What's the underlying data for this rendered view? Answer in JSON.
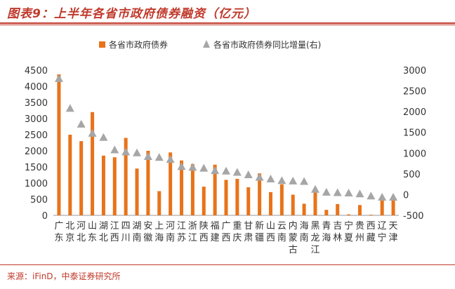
{
  "header": {
    "title": "图表9：上半年各省市政府债券融资（亿元）"
  },
  "footer": {
    "source": "来源：iFinD，中泰证券研究所"
  },
  "chart_data": {
    "type": "bar",
    "categories": [
      "广东",
      "北京",
      "河北",
      "山东",
      "湖北",
      "江西",
      "四川",
      "湖南",
      "安徽",
      "上海",
      "河南",
      "江苏",
      "浙江",
      "陕西",
      "福建",
      "广西",
      "重庆",
      "甘肃",
      "新疆",
      "山西",
      "云南",
      "内蒙古",
      "海南",
      "黑龙江",
      "青海",
      "吉林",
      "宁夏",
      "贵州",
      "西藏",
      "辽宁",
      "天津"
    ],
    "category_labels": [
      [
        "广",
        "东"
      ],
      [
        "北",
        "京"
      ],
      [
        "河",
        "北"
      ],
      [
        "山",
        "东"
      ],
      [
        "湖",
        "北"
      ],
      [
        "江",
        "西"
      ],
      [
        "四",
        "川"
      ],
      [
        "湖",
        "南"
      ],
      [
        "安",
        "徽"
      ],
      [
        "上",
        "海"
      ],
      [
        "河",
        "南"
      ],
      [
        "江",
        "苏"
      ],
      [
        "浙",
        "江"
      ],
      [
        "陕",
        "西"
      ],
      [
        "福",
        "建"
      ],
      [
        "广",
        "西"
      ],
      [
        "重",
        "庆"
      ],
      [
        "甘",
        "肃"
      ],
      [
        "新",
        "疆"
      ],
      [
        "山",
        "西"
      ],
      [
        "云",
        "南"
      ],
      [
        "内",
        "蒙",
        "古"
      ],
      [
        "海",
        "南"
      ],
      [
        "黑",
        "龙",
        "江"
      ],
      [
        "青",
        "海"
      ],
      [
        "吉",
        "林"
      ],
      [
        "宁",
        "夏"
      ],
      [
        "贵",
        "州"
      ],
      [
        "西",
        "藏"
      ],
      [
        "辽",
        "宁"
      ],
      [
        "天",
        "津"
      ]
    ],
    "series": [
      {
        "name": "各省市政府债券",
        "axis": "left",
        "type": "bar",
        "color": "#e8731a",
        "values": [
          4370,
          2500,
          2300,
          3200,
          1850,
          1800,
          2400,
          1450,
          2000,
          750,
          1950,
          1700,
          1590,
          890,
          1570,
          1100,
          1130,
          870,
          1300,
          720,
          960,
          640,
          360,
          790,
          170,
          350,
          30,
          320,
          20,
          460,
          480
        ]
      },
      {
        "name": "各省市政府债券同比增量(右)",
        "axis": "right",
        "type": "scatter",
        "marker": "triangle",
        "color": "#a6a6a6",
        "values": [
          2800,
          2080,
          1700,
          1480,
          1380,
          1080,
          1030,
          1010,
          920,
          900,
          850,
          680,
          660,
          640,
          580,
          570,
          540,
          480,
          420,
          380,
          340,
          330,
          320,
          130,
          60,
          50,
          40,
          20,
          -30,
          -60,
          -60
        ]
      }
    ],
    "y_left": {
      "lim": [
        0,
        4500
      ],
      "ticks": [
        0,
        500,
        1000,
        1500,
        2000,
        2500,
        3000,
        3500,
        4000,
        4500
      ]
    },
    "y_right": {
      "lim": [
        -500,
        3000
      ],
      "ticks": [
        -500,
        0,
        500,
        1000,
        1500,
        2000,
        2500,
        3000
      ]
    },
    "legend": {
      "placement": "top"
    },
    "grid": false
  }
}
